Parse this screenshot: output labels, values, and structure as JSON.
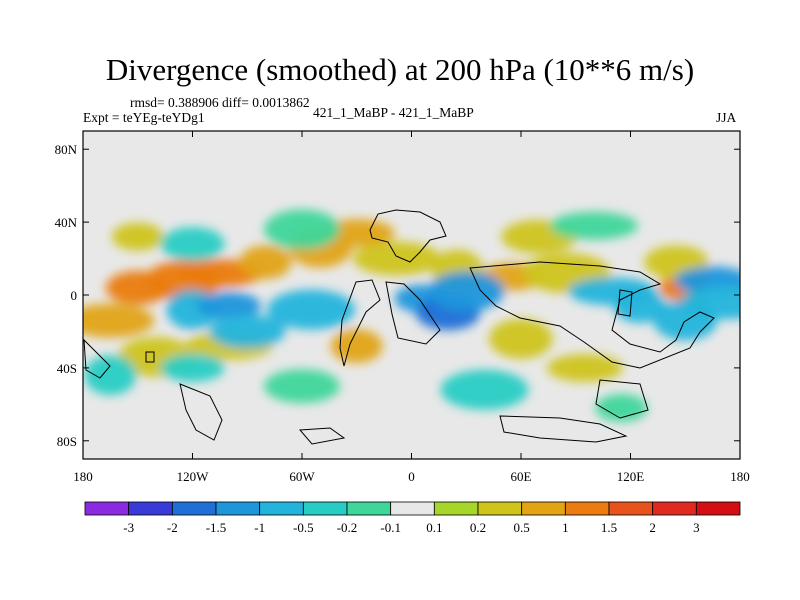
{
  "header": {
    "title": "Divergence (smoothed) at 200 hPa (10**6 m/s)",
    "stats": "rmsd= 0.388906 diff= 0.0013862",
    "expt": "Expt = teYEg-teYDg1",
    "runs": "421_1_MaBP - 421_1_MaBP",
    "season": "JJA"
  },
  "chart_data": {
    "type": "heatmap",
    "title": "Divergence (smoothed) at 200 hPa (10**6 m/s)",
    "xlabel": "",
    "ylabel": "",
    "xlim": [
      -180,
      180
    ],
    "ylim": [
      -90,
      90
    ],
    "x_ticks": [
      {
        "value": -180,
        "label": "180"
      },
      {
        "value": -120,
        "label": "120W"
      },
      {
        "value": -60,
        "label": "60W"
      },
      {
        "value": 0,
        "label": "0"
      },
      {
        "value": 60,
        "label": "60E"
      },
      {
        "value": 120,
        "label": "120E"
      },
      {
        "value": 180,
        "label": "180"
      }
    ],
    "y_ticks": [
      {
        "value": 80,
        "label": "80N"
      },
      {
        "value": 40,
        "label": "40N"
      },
      {
        "value": 0,
        "label": "0"
      },
      {
        "value": -40,
        "label": "40S"
      },
      {
        "value": -80,
        "label": "80S"
      }
    ],
    "colorbar": {
      "labels": [
        "-3",
        "-2",
        "-1.5",
        "-1",
        "-0.5",
        "-0.2",
        "-0.1",
        "0.1",
        "0.2",
        "0.5",
        "1",
        "1.5",
        "2",
        "3"
      ],
      "colors": [
        "#8a2be2",
        "#3a3ad8",
        "#1f6fd6",
        "#1e96dc",
        "#22b4dc",
        "#27cdc4",
        "#3ed69a",
        "#e8e8e8",
        "#a6d62a",
        "#cfc41c",
        "#e2a414",
        "#ea7c12",
        "#e8521c",
        "#e02a20",
        "#d40f14"
      ]
    },
    "features": [
      {
        "lon": -150,
        "lat": 32,
        "level": 9
      },
      {
        "lon": -150,
        "lat": 4,
        "level": 11
      },
      {
        "lon": -125,
        "lat": 8,
        "level": 11
      },
      {
        "lon": -105,
        "lat": 12,
        "level": 11
      },
      {
        "lon": -80,
        "lat": 18,
        "level": 10
      },
      {
        "lon": -50,
        "lat": 26,
        "level": 10
      },
      {
        "lon": -30,
        "lat": 34,
        "level": 10
      },
      {
        "lon": -8,
        "lat": 20,
        "level": 9
      },
      {
        "lon": 25,
        "lat": 14,
        "level": 9
      },
      {
        "lon": 55,
        "lat": 10,
        "level": 10
      },
      {
        "lon": 70,
        "lat": 32,
        "level": 9
      },
      {
        "lon": 85,
        "lat": 12,
        "level": 9
      },
      {
        "lon": 150,
        "lat": 4,
        "level": 11
      },
      {
        "lon": 145,
        "lat": 18,
        "level": 9
      },
      {
        "lon": -140,
        "lat": -34,
        "level": 9
      },
      {
        "lon": -100,
        "lat": -28,
        "level": 9
      },
      {
        "lon": -30,
        "lat": -28,
        "level": 10
      },
      {
        "lon": 60,
        "lat": -24,
        "level": 9
      },
      {
        "lon": 95,
        "lat": -40,
        "level": 9
      },
      {
        "lon": -165,
        "lat": -14,
        "level": 10
      },
      {
        "lon": -120,
        "lat": -8,
        "level": 4
      },
      {
        "lon": -100,
        "lat": -6,
        "level": 3
      },
      {
        "lon": -90,
        "lat": -20,
        "level": 4
      },
      {
        "lon": -55,
        "lat": -8,
        "level": 4
      },
      {
        "lon": 5,
        "lat": -2,
        "level": 3
      },
      {
        "lon": 20,
        "lat": -10,
        "level": 2
      },
      {
        "lon": 30,
        "lat": 2,
        "level": 3
      },
      {
        "lon": 110,
        "lat": 2,
        "level": 4
      },
      {
        "lon": 125,
        "lat": -6,
        "level": 4
      },
      {
        "lon": 150,
        "lat": -14,
        "level": 4
      },
      {
        "lon": 165,
        "lat": 8,
        "level": 3
      },
      {
        "lon": 172,
        "lat": -4,
        "level": 4
      },
      {
        "lon": -165,
        "lat": -44,
        "level": 5
      },
      {
        "lon": -120,
        "lat": -40,
        "level": 5
      },
      {
        "lon": -60,
        "lat": -50,
        "level": 6
      },
      {
        "lon": 40,
        "lat": -52,
        "level": 5
      },
      {
        "lon": 115,
        "lat": -62,
        "level": 6
      },
      {
        "lon": -120,
        "lat": 28,
        "level": 5
      },
      {
        "lon": -60,
        "lat": 36,
        "level": 6
      },
      {
        "lon": 100,
        "lat": 38,
        "level": 6
      }
    ]
  }
}
